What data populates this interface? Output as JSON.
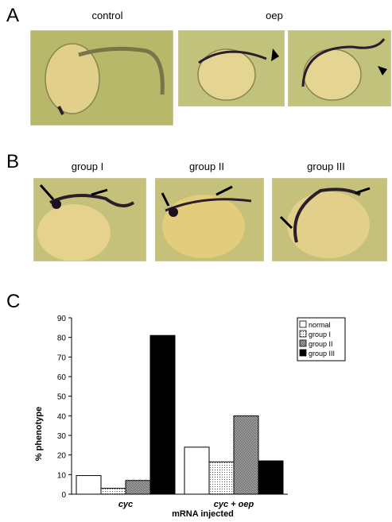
{
  "panel_labels": {
    "a": "A",
    "b": "B",
    "c": "C"
  },
  "panel_a": {
    "captions": [
      "control",
      "oep"
    ],
    "images": [
      {
        "name": "control-embryo",
        "arrowheads": 0
      },
      {
        "name": "oep-embryo-1",
        "arrowheads": 1
      },
      {
        "name": "oep-embryo-2",
        "arrowheads": 1
      }
    ]
  },
  "panel_b": {
    "captions": [
      "group I",
      "group II",
      "group III"
    ]
  },
  "colors": {
    "embryo_bg": "#bfbe6a",
    "yolk": "#e0cf8a",
    "stain": "#2a1e2a"
  },
  "chart_data": {
    "type": "bar",
    "categories": [
      "cyc",
      "cyc + oep"
    ],
    "series": [
      {
        "name": "normal",
        "values": [
          9.5,
          24
        ],
        "fill": "white"
      },
      {
        "name": "group I",
        "values": [
          3,
          16.5
        ],
        "fill": "dots"
      },
      {
        "name": "group II",
        "values": [
          7,
          40
        ],
        "fill": "checker"
      },
      {
        "name": "group III",
        "values": [
          81,
          17
        ],
        "fill": "black"
      }
    ],
    "ylabel": "% phenotype",
    "xlabel": "mRNA injected",
    "ylim": [
      0,
      90
    ],
    "yticks": [
      0,
      10,
      20,
      30,
      40,
      50,
      60,
      70,
      80,
      90
    ],
    "legend_position": "top-right"
  }
}
